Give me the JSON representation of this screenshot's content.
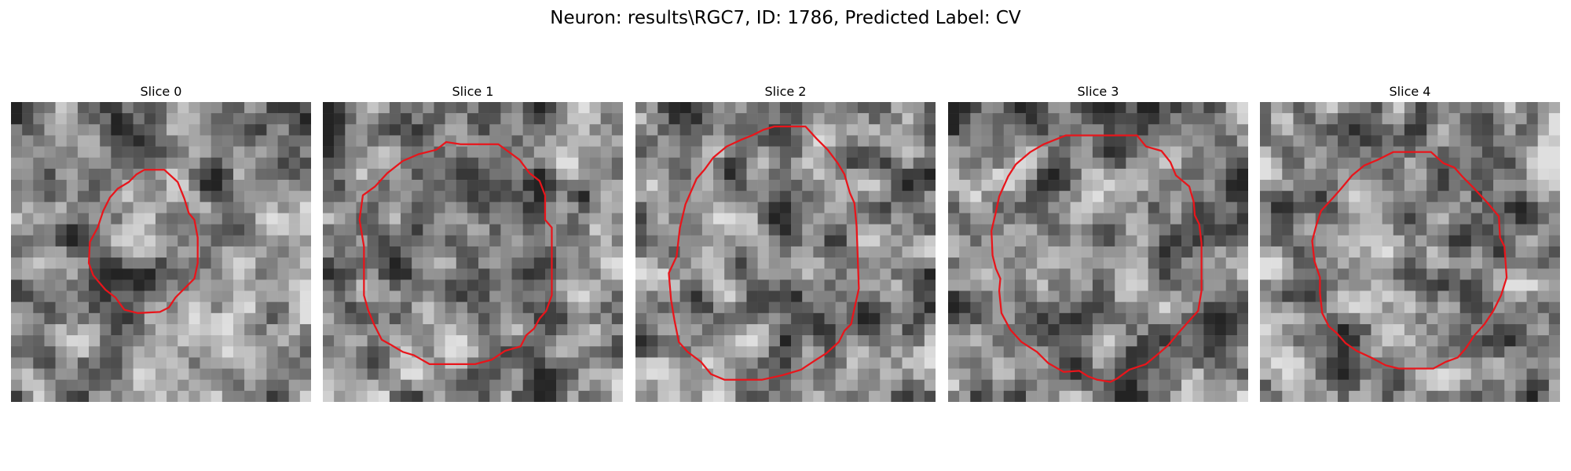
{
  "figure": {
    "title": "Neuron: results\\RGC7, ID: 1786, Predicted Label: CV",
    "contour_color": "#e8151b",
    "panels": [
      {
        "title": "Slice 0",
        "seed": 11,
        "contour": [
          [
            12.0,
            6.1
          ],
          [
            13.8,
            6.1
          ],
          [
            15.0,
            7.2
          ],
          [
            15.6,
            8.7
          ],
          [
            16.0,
            10.0
          ],
          [
            16.5,
            10.6
          ],
          [
            16.8,
            12.2
          ],
          [
            16.8,
            14.5
          ],
          [
            16.5,
            15.9
          ],
          [
            15.5,
            16.9
          ],
          [
            14.8,
            17.6
          ],
          [
            14.2,
            18.5
          ],
          [
            13.4,
            18.9
          ],
          [
            11.4,
            19.0
          ],
          [
            10.2,
            18.7
          ],
          [
            9.4,
            17.6
          ],
          [
            8.5,
            16.9
          ],
          [
            7.9,
            16.2
          ],
          [
            7.4,
            15.6
          ],
          [
            7.0,
            14.5
          ],
          [
            7.1,
            12.6
          ],
          [
            7.8,
            11.3
          ],
          [
            8.3,
            9.8
          ],
          [
            8.9,
            8.6
          ],
          [
            9.6,
            7.8
          ],
          [
            10.6,
            7.2
          ],
          [
            11.3,
            6.5
          ]
        ]
      },
      {
        "title": "Slice 1",
        "seed": 23,
        "contour": [
          [
            12.4,
            3.8
          ],
          [
            15.8,
            3.8
          ],
          [
            17.7,
            5.2
          ],
          [
            18.6,
            6.4
          ],
          [
            19.5,
            7.1
          ],
          [
            20.0,
            8.4
          ],
          [
            20.0,
            10.6
          ],
          [
            20.6,
            11.3
          ],
          [
            20.6,
            17.4
          ],
          [
            20.1,
            18.8
          ],
          [
            19.5,
            19.5
          ],
          [
            19.0,
            20.4
          ],
          [
            18.3,
            21.0
          ],
          [
            17.8,
            22.0
          ],
          [
            16.4,
            22.4
          ],
          [
            15.2,
            23.2
          ],
          [
            13.7,
            23.6
          ],
          [
            9.6,
            23.6
          ],
          [
            8.2,
            22.8
          ],
          [
            7.2,
            22.5
          ],
          [
            6.2,
            21.9
          ],
          [
            5.3,
            21.4
          ],
          [
            4.6,
            20.0
          ],
          [
            4.1,
            18.8
          ],
          [
            3.7,
            17.4
          ],
          [
            3.7,
            13.0
          ],
          [
            3.3,
            10.6
          ],
          [
            3.6,
            8.4
          ],
          [
            4.7,
            7.6
          ],
          [
            5.8,
            6.4
          ],
          [
            7.2,
            5.3
          ],
          [
            8.6,
            4.7
          ],
          [
            10.2,
            4.3
          ],
          [
            11.1,
            3.6
          ]
        ]
      },
      {
        "title": "Slice 2",
        "seed": 37,
        "contour": [
          [
            12.5,
            2.2
          ],
          [
            15.3,
            2.2
          ],
          [
            16.3,
            3.3
          ],
          [
            17.3,
            4.3
          ],
          [
            18.2,
            5.5
          ],
          [
            18.8,
            6.5
          ],
          [
            19.3,
            8.2
          ],
          [
            19.7,
            9.1
          ],
          [
            19.9,
            11.2
          ],
          [
            20.1,
            16.8
          ],
          [
            19.7,
            18.6
          ],
          [
            19.4,
            20.0
          ],
          [
            18.8,
            20.6
          ],
          [
            18.3,
            21.6
          ],
          [
            17.2,
            22.6
          ],
          [
            16.1,
            23.3
          ],
          [
            14.9,
            24.1
          ],
          [
            13.2,
            24.6
          ],
          [
            11.4,
            25.0
          ],
          [
            8.0,
            25.0
          ],
          [
            6.8,
            24.5
          ],
          [
            5.9,
            23.4
          ],
          [
            4.7,
            22.5
          ],
          [
            3.9,
            21.6
          ],
          [
            3.5,
            19.6
          ],
          [
            3.2,
            17.8
          ],
          [
            3.0,
            15.4
          ],
          [
            3.7,
            13.9
          ],
          [
            4.0,
            11.3
          ],
          [
            4.5,
            9.2
          ],
          [
            5.5,
            6.9
          ],
          [
            6.2,
            6.1
          ],
          [
            7.0,
            5.0
          ],
          [
            8.2,
            4.0
          ],
          [
            9.5,
            3.4
          ],
          [
            10.5,
            3.0
          ],
          [
            11.5,
            2.5
          ]
        ]
      },
      {
        "title": "Slice 3",
        "seed": 53,
        "contour": [
          [
            10.6,
            3.0
          ],
          [
            17.0,
            3.0
          ],
          [
            17.8,
            4.0
          ],
          [
            19.2,
            4.4
          ],
          [
            20.0,
            5.4
          ],
          [
            20.5,
            6.6
          ],
          [
            21.7,
            7.6
          ],
          [
            22.1,
            9.0
          ],
          [
            22.2,
            10.2
          ],
          [
            22.6,
            11.0
          ],
          [
            22.8,
            12.7
          ],
          [
            22.8,
            17.0
          ],
          [
            22.5,
            18.8
          ],
          [
            21.6,
            19.8
          ],
          [
            20.8,
            20.7
          ],
          [
            19.8,
            21.9
          ],
          [
            19.0,
            22.6
          ],
          [
            17.8,
            23.6
          ],
          [
            16.3,
            24.1
          ],
          [
            15.2,
            24.9
          ],
          [
            14.6,
            25.2
          ],
          [
            13.4,
            25.0
          ],
          [
            12.6,
            24.7
          ],
          [
            11.8,
            24.2
          ],
          [
            10.4,
            24.3
          ],
          [
            9.0,
            23.5
          ],
          [
            8.0,
            22.5
          ],
          [
            6.6,
            21.6
          ],
          [
            5.6,
            20.5
          ],
          [
            4.8,
            19.0
          ],
          [
            4.6,
            17.0
          ],
          [
            4.7,
            15.9
          ],
          [
            4.3,
            15.0
          ],
          [
            4.0,
            13.8
          ],
          [
            3.9,
            11.6
          ],
          [
            4.3,
            9.9
          ],
          [
            4.6,
            8.5
          ],
          [
            5.4,
            6.7
          ],
          [
            6.1,
            5.6
          ],
          [
            7.4,
            4.5
          ],
          [
            8.6,
            3.8
          ]
        ]
      },
      {
        "title": "Slice 4",
        "seed": 71,
        "contour": [
          [
            12.0,
            4.5
          ],
          [
            15.4,
            4.5
          ],
          [
            16.5,
            5.5
          ],
          [
            17.5,
            5.9
          ],
          [
            18.3,
            6.8
          ],
          [
            19.2,
            7.7
          ],
          [
            20.5,
            9.1
          ],
          [
            21.5,
            10.3
          ],
          [
            21.6,
            12.2
          ],
          [
            22.0,
            13.0
          ],
          [
            22.2,
            15.8
          ],
          [
            21.7,
            17.4
          ],
          [
            21.0,
            18.8
          ],
          [
            20.2,
            20.0
          ],
          [
            19.3,
            21.0
          ],
          [
            18.5,
            22.2
          ],
          [
            17.8,
            23.0
          ],
          [
            16.7,
            23.4
          ],
          [
            15.6,
            24.0
          ],
          [
            12.5,
            24.0
          ],
          [
            11.3,
            23.7
          ],
          [
            10.2,
            23.1
          ],
          [
            8.7,
            22.4
          ],
          [
            7.7,
            21.7
          ],
          [
            6.9,
            20.8
          ],
          [
            6.2,
            20.2
          ],
          [
            5.6,
            19.0
          ],
          [
            5.4,
            17.2
          ],
          [
            5.4,
            15.8
          ],
          [
            4.9,
            14.3
          ],
          [
            4.7,
            12.5
          ],
          [
            5.1,
            11.0
          ],
          [
            5.5,
            9.8
          ],
          [
            6.6,
            8.6
          ],
          [
            7.3,
            7.8
          ],
          [
            8.3,
            6.6
          ],
          [
            9.4,
            5.7
          ],
          [
            10.6,
            5.2
          ]
        ]
      }
    ]
  }
}
